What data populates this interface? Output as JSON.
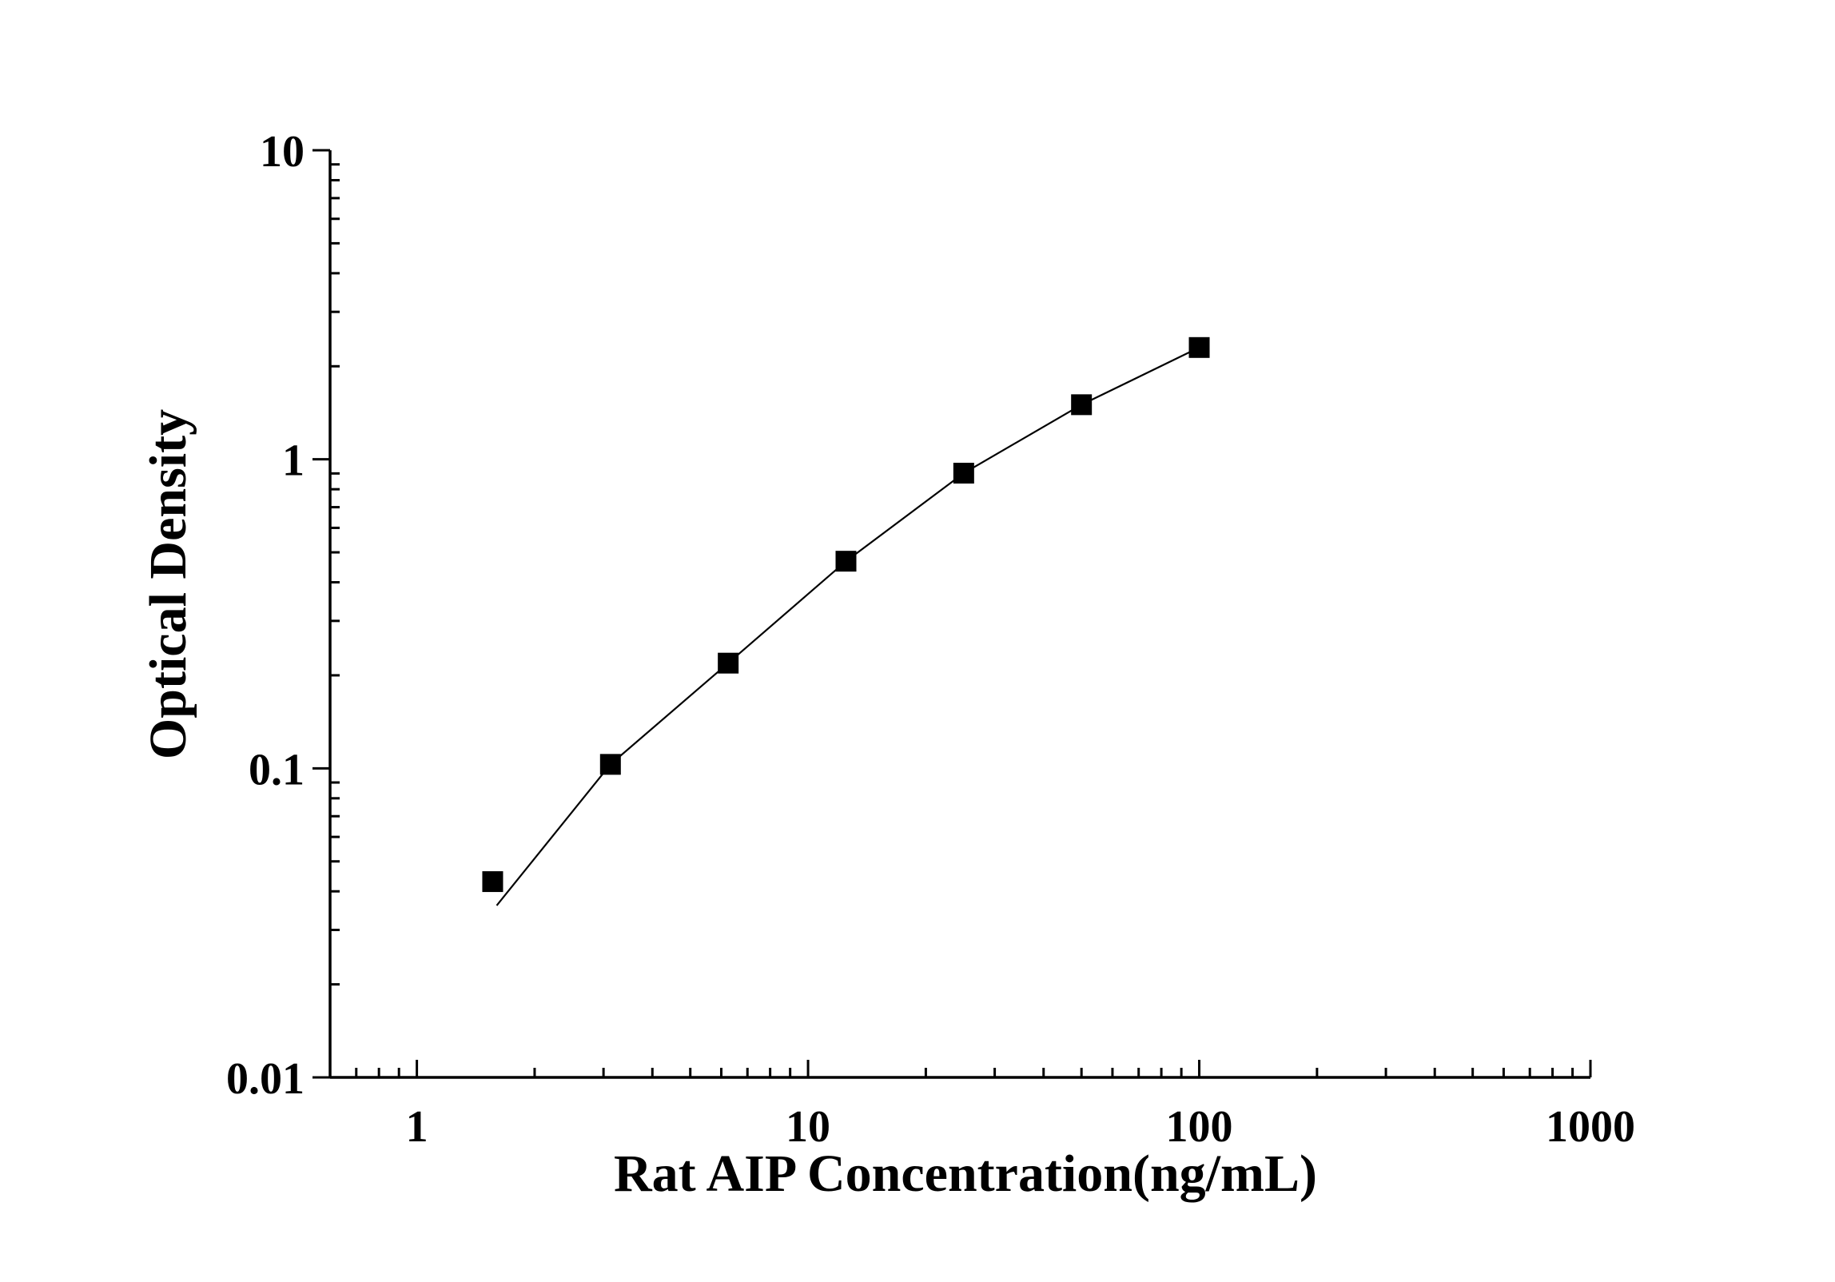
{
  "chart_data": {
    "type": "scatter",
    "title": "",
    "xlabel": "Rat AIP Concentration(ng/mL)",
    "ylabel": "Optical Density",
    "x_scale": "log",
    "y_scale": "log",
    "xlim": [
      0.6,
      1000
    ],
    "ylim": [
      0.01,
      10
    ],
    "x_ticks": [
      {
        "value": 1,
        "label": "1"
      },
      {
        "value": 10,
        "label": "10"
      },
      {
        "value": 100,
        "label": "100"
      },
      {
        "value": 1000,
        "label": "1000"
      }
    ],
    "y_ticks": [
      {
        "value": 0.01,
        "label": "0.01"
      },
      {
        "value": 0.1,
        "label": "0.1"
      },
      {
        "value": 1,
        "label": "1"
      },
      {
        "value": 10,
        "label": "10"
      }
    ],
    "grid": false,
    "legend": "none",
    "marker_color": "#000000",
    "line_color": "#000000",
    "series": [
      {
        "marker": "square",
        "x": [
          1.5625,
          3.125,
          6.25,
          12.5,
          25,
          50,
          100
        ],
        "y": [
          0.043,
          0.103,
          0.219,
          0.468,
          0.902,
          1.502,
          2.3
        ]
      }
    ],
    "fit_curve": {
      "x": [
        1.6,
        3.125,
        6.25,
        12.5,
        25,
        50,
        100
      ],
      "y": [
        0.036,
        0.103,
        0.219,
        0.468,
        0.902,
        1.502,
        2.3
      ]
    }
  }
}
